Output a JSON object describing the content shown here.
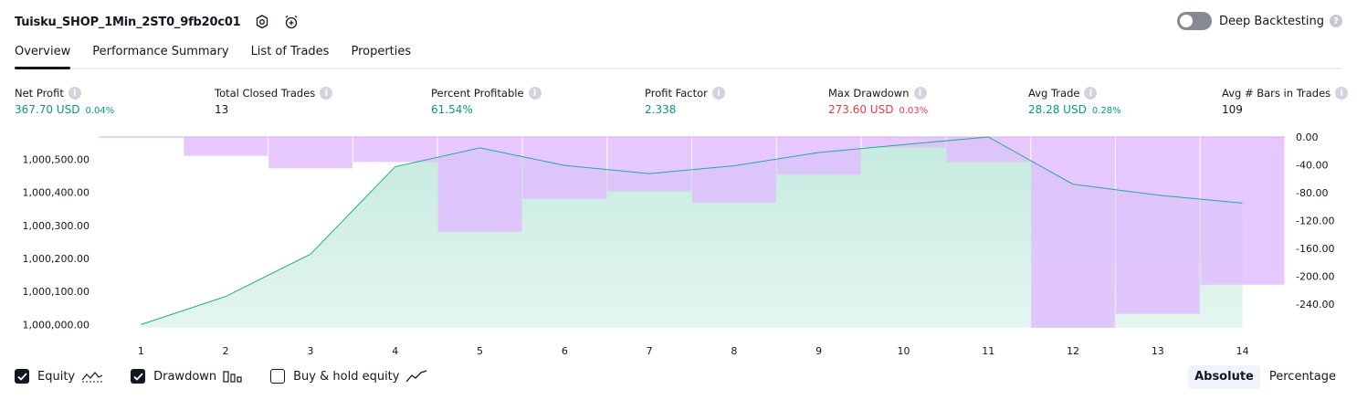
{
  "header": {
    "strategy_name": "Tuisku_SHOP_1Min_2ST0_9fb20c01",
    "settings_icon": "gear-icon",
    "alert_icon": "alarm-clock-plus-icon",
    "deep_backtesting_label": "Deep Backtesting",
    "deep_backtesting_enabled": false,
    "help_icon": "question-icon"
  },
  "tabs": [
    {
      "label": "Overview",
      "active": true
    },
    {
      "label": "Performance Summary",
      "active": false
    },
    {
      "label": "List of Trades",
      "active": false
    },
    {
      "label": "Properties",
      "active": false
    }
  ],
  "stats": [
    {
      "label": "Net Profit",
      "value": "367.70 USD",
      "pct": "0.04%",
      "tone": "pos"
    },
    {
      "label": "Total Closed Trades",
      "value": "13",
      "pct": "",
      "tone": "neu"
    },
    {
      "label": "Percent Profitable",
      "value": "61.54%",
      "pct": "",
      "tone": "pos"
    },
    {
      "label": "Profit Factor",
      "value": "2.338",
      "pct": "",
      "tone": "pos"
    },
    {
      "label": "Max Drawdown",
      "value": "273.60 USD",
      "pct": "0.03%",
      "tone": "neg"
    },
    {
      "label": "Avg Trade",
      "value": "28.28 USD",
      "pct": "0.28%",
      "tone": "pos"
    },
    {
      "label": "Avg # Bars in Trades",
      "value": "109",
      "pct": "",
      "tone": "neu"
    }
  ],
  "legend": {
    "equity_label": "Equity",
    "equity_checked": true,
    "drawdown_label": "Drawdown",
    "drawdown_checked": true,
    "buyhold_label": "Buy & hold equity",
    "buyhold_checked": false
  },
  "modes": {
    "absolute": "Absolute",
    "percentage": "Percentage",
    "active": "Absolute"
  },
  "colors": {
    "equity_line": "#22ab94",
    "equity_fill": "#c4eade",
    "drawdown_bar": "#e1bcff",
    "overlap": "#b1b5e4",
    "positive": "#089981",
    "negative": "#f23645"
  },
  "chart_data": {
    "type": "area",
    "x": [
      1,
      2,
      3,
      4,
      5,
      6,
      7,
      8,
      9,
      10,
      11,
      12,
      13,
      14
    ],
    "series": [
      {
        "name": "Equity",
        "axis": "left",
        "values": [
          1000000.0,
          1000085.0,
          1000213.0,
          1000478.0,
          1000535.0,
          1000482.0,
          1000457.0,
          1000481.0,
          1000521.0,
          1000545.0,
          1000568.0,
          1000425.0,
          1000392.0,
          1000368.0
        ]
      },
      {
        "name": "Drawdown",
        "type": "bar",
        "axis": "right",
        "values": [
          0.0,
          -27.0,
          -45.0,
          -36.0,
          -136.0,
          -89.0,
          -78.0,
          -94.0,
          -54.0,
          -15.0,
          -36.0,
          -274.0,
          -254.0,
          -212.0
        ]
      }
    ],
    "left_axis": {
      "ticks": [
        "1,000,000.00",
        "1,000,100.00",
        "1,000,200.00",
        "1,000,300.00",
        "1,000,400.00",
        "1,000,500.00"
      ],
      "range": [
        999990,
        1000568
      ]
    },
    "right_axis": {
      "ticks": [
        "0.00",
        "-40.00",
        "-80.00",
        "-120.00",
        "-160.00",
        "-200.00",
        "-240.00"
      ],
      "range": [
        -274,
        0
      ]
    },
    "x_tick_labels": [
      "1",
      "2",
      "3",
      "4",
      "5",
      "6",
      "7",
      "8",
      "9",
      "10",
      "11",
      "12",
      "13",
      "14"
    ]
  }
}
